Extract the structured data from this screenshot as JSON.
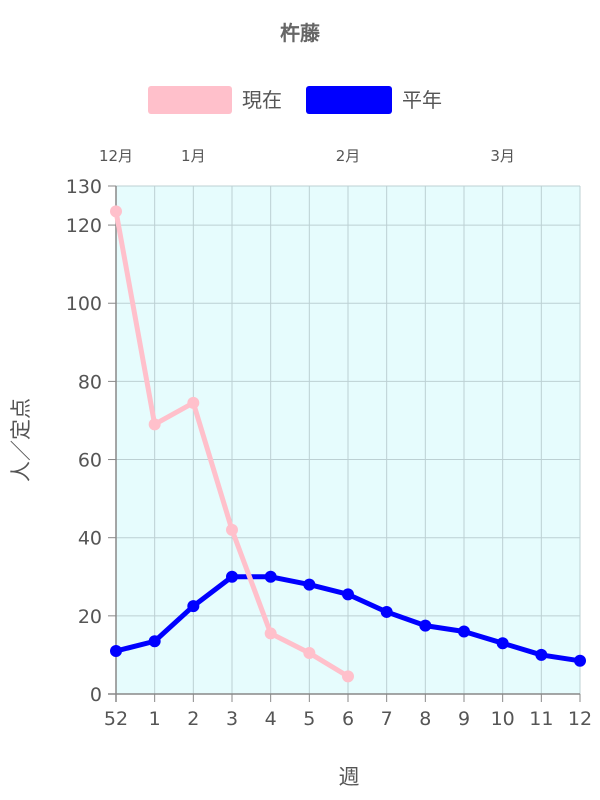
{
  "chart_data": {
    "type": "line",
    "title": "杵藤",
    "xlabel": "週",
    "ylabel": "人／定点",
    "categories": [
      "52",
      "1",
      "2",
      "3",
      "4",
      "5",
      "6",
      "7",
      "8",
      "9",
      "10",
      "11",
      "12"
    ],
    "month_labels": [
      {
        "label": "12月",
        "at": "52"
      },
      {
        "label": "1月",
        "at": "2"
      },
      {
        "label": "2月",
        "at": "6"
      },
      {
        "label": "3月",
        "at": "10"
      }
    ],
    "ylim": [
      0,
      130
    ],
    "yticks": [
      0,
      20,
      40,
      60,
      80,
      100,
      120,
      130
    ],
    "grid": true,
    "legend_position": "top",
    "plot_background": "#e6fcfd",
    "series": [
      {
        "name": "現在",
        "color": "#ffc0cb",
        "values": [
          123.5,
          69,
          74.5,
          42,
          15.5,
          10.5,
          4.5,
          null,
          null,
          null,
          null,
          null,
          null
        ]
      },
      {
        "name": "平年",
        "color": "#0000ff",
        "values": [
          11,
          13.5,
          22.5,
          30,
          30,
          28,
          25.5,
          21,
          17.5,
          16,
          13,
          10,
          8.5
        ]
      }
    ]
  }
}
